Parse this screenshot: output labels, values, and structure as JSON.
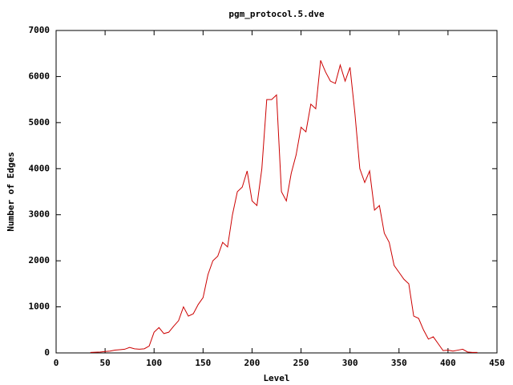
{
  "chart_data": {
    "type": "line",
    "title": "pgm_protocol.5.dve",
    "x_label": "Level",
    "y_label": "Number of Edges",
    "x": [
      35,
      40,
      45,
      50,
      55,
      60,
      65,
      70,
      75,
      80,
      85,
      90,
      95,
      100,
      105,
      110,
      115,
      120,
      125,
      130,
      135,
      140,
      145,
      150,
      155,
      160,
      165,
      170,
      175,
      180,
      185,
      190,
      195,
      200,
      205,
      210,
      215,
      220,
      225,
      230,
      235,
      240,
      245,
      250,
      255,
      260,
      265,
      270,
      275,
      280,
      285,
      290,
      295,
      300,
      305,
      310,
      315,
      320,
      325,
      330,
      335,
      340,
      345,
      350,
      355,
      360,
      365,
      370,
      375,
      380,
      385,
      390,
      395,
      400,
      405,
      410,
      415,
      420,
      425,
      430
    ],
    "series": [
      {
        "name": "Edges",
        "color": "#cc0000",
        "values": [
          10,
          15,
          20,
          30,
          40,
          60,
          70,
          80,
          120,
          90,
          80,
          90,
          150,
          450,
          550,
          420,
          450,
          580,
          700,
          1000,
          800,
          850,
          1050,
          1200,
          1700,
          2000,
          2100,
          2400,
          2300,
          3000,
          3500,
          3600,
          3950,
          3300,
          3200,
          4000,
          5500,
          5500,
          5600,
          3500,
          3300,
          3900,
          4300,
          4900,
          4800,
          5400,
          5300,
          6350,
          6100,
          5900,
          5850,
          6250,
          5900,
          6200,
          5200,
          4000,
          3700,
          3950,
          3100,
          3200,
          2600,
          2400,
          1900,
          1750,
          1600,
          1500,
          800,
          750,
          500,
          300,
          350,
          200,
          50,
          60,
          40,
          60,
          80,
          20,
          10,
          10
        ]
      }
    ],
    "xlim": [
      0,
      450
    ],
    "xticks": [
      0,
      50,
      100,
      150,
      200,
      250,
      300,
      350,
      400,
      450
    ],
    "ylim": [
      0,
      7000
    ],
    "yticks": [
      0,
      1000,
      2000,
      3000,
      4000,
      5000,
      6000,
      7000
    ],
    "grid": false,
    "legend": false
  }
}
